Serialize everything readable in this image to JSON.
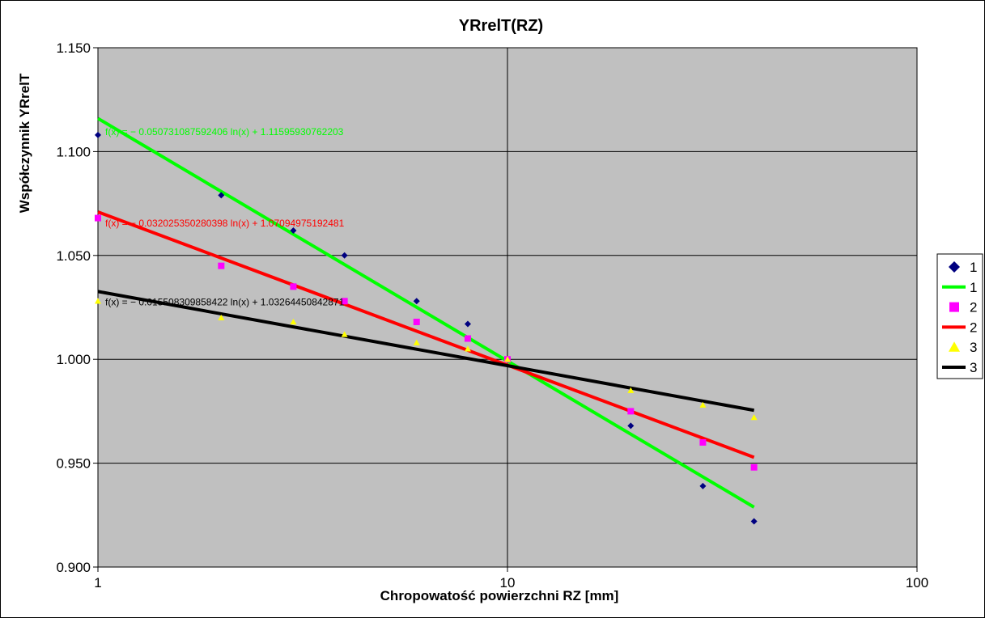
{
  "chart_data": {
    "type": "scatter",
    "title": "YRrelT(RZ)",
    "xlabel": "Chropowatość powierzchni RZ [mm]",
    "ylabel": "Współczynnik YRrelT",
    "xscale": "log",
    "xlim": [
      1,
      100
    ],
    "ylim": [
      0.9,
      1.15
    ],
    "x_ticks": [
      "1",
      "10",
      "100"
    ],
    "y_ticks": [
      "0.900",
      "0.950",
      "1.000",
      "1.050",
      "1.100",
      "1.150"
    ],
    "grid": true,
    "legend_position": "right",
    "series": [
      {
        "name": "1",
        "marker": "diamond",
        "color": "#000080",
        "x": [
          1,
          2,
          3,
          4,
          6,
          8,
          10,
          20,
          30,
          40
        ],
        "y": [
          1.108,
          1.079,
          1.062,
          1.05,
          1.028,
          1.017,
          1.0,
          0.968,
          0.939,
          0.922
        ]
      },
      {
        "name": "2",
        "marker": "square",
        "color": "#ff00ff",
        "x": [
          1,
          2,
          3,
          4,
          6,
          8,
          10,
          20,
          30,
          40
        ],
        "y": [
          1.068,
          1.045,
          1.035,
          1.028,
          1.018,
          1.01,
          1.0,
          0.975,
          0.96,
          0.948
        ]
      },
      {
        "name": "3",
        "marker": "triangle",
        "color": "#ffff00",
        "x": [
          1,
          2,
          3,
          4,
          6,
          8,
          10,
          20,
          30,
          40
        ],
        "y": [
          1.028,
          1.02,
          1.018,
          1.012,
          1.008,
          1.005,
          1.0,
          0.985,
          0.978,
          0.972
        ]
      }
    ],
    "trendlines": [
      {
        "name": "1",
        "color": "#00ff00",
        "slope": -0.050731087592406,
        "intercept": 1.11595930762203,
        "x_range": [
          1,
          40
        ],
        "equation": "f(x) = − 0.050731087592406 ln(x) + 1.11595930762203"
      },
      {
        "name": "2",
        "color": "#ff0000",
        "slope": -0.032025350280398,
        "intercept": 1.07094975192481,
        "x_range": [
          1,
          40
        ],
        "equation": "f(x) = − 0.032025350280398 ln(x) + 1.07094975192481"
      },
      {
        "name": "3",
        "color": "#000000",
        "slope": -0.015508309858422,
        "intercept": 1.03264450842871,
        "x_range": [
          1,
          40
        ],
        "equation": "f(x) = − 0.015508309858422 ln(x) + 1.03264450842871"
      }
    ],
    "legend": [
      {
        "label": "1",
        "kind": "marker",
        "marker": "diamond",
        "color": "#000080"
      },
      {
        "label": "1",
        "kind": "line",
        "color": "#00ff00"
      },
      {
        "label": "2",
        "kind": "marker",
        "marker": "square",
        "color": "#ff00ff"
      },
      {
        "label": "2",
        "kind": "line",
        "color": "#ff0000"
      },
      {
        "label": "3",
        "kind": "marker",
        "marker": "triangle",
        "color": "#ffff00"
      },
      {
        "label": "3",
        "kind": "line",
        "color": "#000000"
      }
    ],
    "plot_background": "#c0c0c0"
  }
}
